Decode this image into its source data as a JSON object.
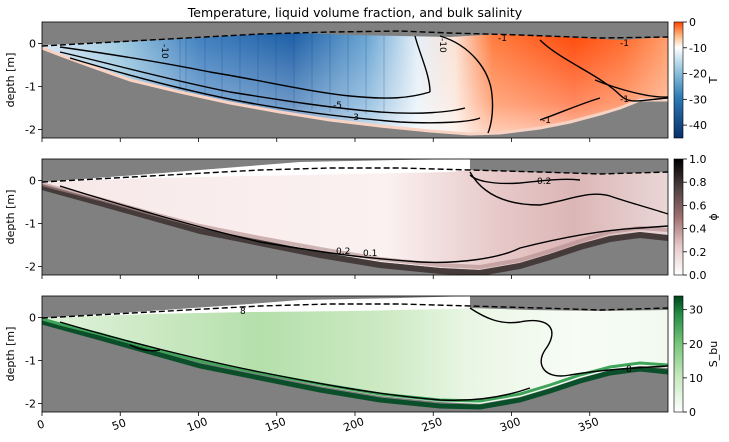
{
  "chart_data": [
    {
      "type": "heatmap",
      "title": "Temperature, liquid volume fraction, and bulk salinity",
      "ylabel": "depth [m]",
      "xlim": [
        0,
        400
      ],
      "ylim": [
        -2.2,
        0.5
      ],
      "y_ticks": [
        "0",
        "-1",
        "-2"
      ],
      "y_tick_values": [
        0,
        -1,
        -2
      ],
      "colorbar": {
        "label": "T",
        "range": [
          -45,
          0
        ],
        "ticks": [
          "0",
          "-10",
          "-20",
          "-30",
          "-40"
        ],
        "tick_values": [
          0,
          -10,
          -20,
          -30,
          -40
        ],
        "colors": [
          "#08306b",
          "#2c7bb6",
          "#c6dbef",
          "#ffffff",
          "#fdbb84",
          "#ff4500"
        ]
      },
      "contour_labels": [
        "-10",
        "-5",
        "-3",
        "-1",
        "-1",
        "-1",
        "-1",
        "-10"
      ]
    },
    {
      "type": "heatmap",
      "ylabel": "depth [m]",
      "xlim": [
        0,
        400
      ],
      "ylim": [
        -2.2,
        0.5
      ],
      "y_ticks": [
        "0",
        "-1",
        "-2"
      ],
      "y_tick_values": [
        0,
        -1,
        -2
      ],
      "colorbar": {
        "label": "ϕ",
        "range": [
          0,
          1
        ],
        "ticks": [
          "0.0",
          "0.2",
          "0.4",
          "0.6",
          "0.8",
          "1.0"
        ],
        "tick_values": [
          0,
          0.2,
          0.4,
          0.6,
          0.8,
          1.0
        ],
        "colors": [
          "#ffffff",
          "#d9b3b3",
          "#a07070",
          "#505050",
          "#000000"
        ]
      },
      "contour_labels": [
        "0.2",
        "0.1",
        "0.2"
      ]
    },
    {
      "type": "heatmap",
      "ylabel": "depth [m]",
      "xlabel": "",
      "xlim": [
        0,
        400
      ],
      "ylim": [
        -2.2,
        0.5
      ],
      "x_ticks": [
        "0",
        "50",
        "100",
        "150",
        "200",
        "250",
        "300",
        "350"
      ],
      "x_tick_values": [
        0,
        50,
        100,
        150,
        200,
        250,
        300,
        350
      ],
      "y_ticks": [
        "0",
        "-1",
        "-2"
      ],
      "y_tick_values": [
        0,
        -1,
        -2
      ],
      "colorbar": {
        "label": "S_bu",
        "range": [
          0,
          34
        ],
        "ticks": [
          "0",
          "10",
          "20",
          "30"
        ],
        "tick_values": [
          0,
          10,
          20,
          30
        ],
        "colors": [
          "#ffffff",
          "#c7e9c0",
          "#74c476",
          "#238b45",
          "#00441b"
        ]
      },
      "contour_labels": [
        "8",
        "8"
      ]
    }
  ],
  "colors": {
    "background_gray": "#808080",
    "warm": "#ff4500",
    "cold": "#08306b"
  }
}
